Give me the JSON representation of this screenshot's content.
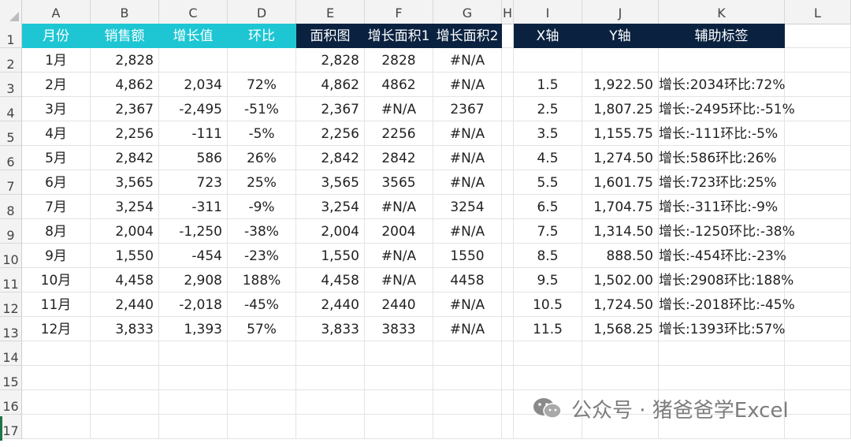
{
  "columns": [
    "A",
    "B",
    "C",
    "D",
    "E",
    "F",
    "G",
    "H",
    "I",
    "J",
    "K",
    "L"
  ],
  "rows": [
    "1",
    "2",
    "3",
    "4",
    "5",
    "6",
    "7",
    "8",
    "9",
    "10",
    "11",
    "12",
    "13",
    "14",
    "15",
    "16",
    "17"
  ],
  "headers": {
    "A": "月份",
    "B": "销售额",
    "C": "增长值",
    "D": "环比",
    "E": "面积图",
    "F": "增长面积1",
    "G": "增长面积2",
    "I": "X轴",
    "J": "Y轴",
    "K": "辅助标签"
  },
  "data": [
    {
      "A": "1月",
      "B": "2,828",
      "C": "",
      "D": "",
      "E": "2,828",
      "F": "2828",
      "G": "#N/A",
      "I": "",
      "J": "",
      "K": ""
    },
    {
      "A": "2月",
      "B": "4,862",
      "C": "2,034",
      "D": "72%",
      "E": "4,862",
      "F": "4862",
      "G": "#N/A",
      "I": "1.5",
      "J": "1,922.50",
      "K": "增长:2034环比:72%"
    },
    {
      "A": "3月",
      "B": "2,367",
      "C": "-2,495",
      "D": "-51%",
      "E": "2,367",
      "F": "#N/A",
      "G": "2367",
      "I": "2.5",
      "J": "1,807.25",
      "K": "增长:-2495环比:-51%"
    },
    {
      "A": "4月",
      "B": "2,256",
      "C": "-111",
      "D": "-5%",
      "E": "2,256",
      "F": "2256",
      "G": "#N/A",
      "I": "3.5",
      "J": "1,155.75",
      "K": "增长:-111环比:-5%"
    },
    {
      "A": "5月",
      "B": "2,842",
      "C": "586",
      "D": "26%",
      "E": "2,842",
      "F": "2842",
      "G": "#N/A",
      "I": "4.5",
      "J": "1,274.50",
      "K": "增长:586环比:26%"
    },
    {
      "A": "6月",
      "B": "3,565",
      "C": "723",
      "D": "25%",
      "E": "3,565",
      "F": "3565",
      "G": "#N/A",
      "I": "5.5",
      "J": "1,601.75",
      "K": "增长:723环比:25%"
    },
    {
      "A": "7月",
      "B": "3,254",
      "C": "-311",
      "D": "-9%",
      "E": "3,254",
      "F": "#N/A",
      "G": "3254",
      "I": "6.5",
      "J": "1,704.75",
      "K": "增长:-311环比:-9%"
    },
    {
      "A": "8月",
      "B": "2,004",
      "C": "-1,250",
      "D": "-38%",
      "E": "2,004",
      "F": "2004",
      "G": "#N/A",
      "I": "7.5",
      "J": "1,314.50",
      "K": "增长:-1250环比:-38%"
    },
    {
      "A": "9月",
      "B": "1,550",
      "C": "-454",
      "D": "-23%",
      "E": "1,550",
      "F": "#N/A",
      "G": "1550",
      "I": "8.5",
      "J": "888.50",
      "K": "增长:-454环比:-23%"
    },
    {
      "A": "10月",
      "B": "4,458",
      "C": "2,908",
      "D": "188%",
      "E": "4,458",
      "F": "#N/A",
      "G": "4458",
      "I": "9.5",
      "J": "1,502.00",
      "K": "增长:2908环比:188%"
    },
    {
      "A": "11月",
      "B": "2,440",
      "C": "-2,018",
      "D": "-45%",
      "E": "2,440",
      "F": "2440",
      "G": "#N/A",
      "I": "10.5",
      "J": "1,724.50",
      "K": "增长:-2018环比:-45%"
    },
    {
      "A": "12月",
      "B": "3,833",
      "C": "1,393",
      "D": "57%",
      "E": "3,833",
      "F": "3833",
      "G": "#N/A",
      "I": "11.5",
      "J": "1,568.25",
      "K": "增长:1393环比:57%"
    }
  ],
  "watermark": "公众号 · 猪爸爸学Excel",
  "colors": {
    "cyan": "#1ec6d3",
    "navy": "#0a2240"
  }
}
